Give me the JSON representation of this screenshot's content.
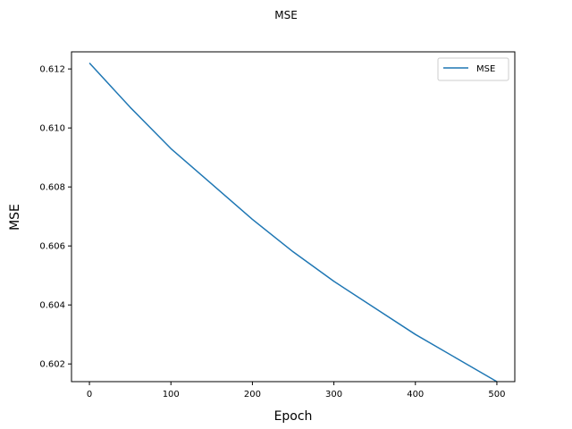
{
  "chart_data": {
    "type": "line",
    "title": "MSE",
    "xlabel": "Epoch",
    "ylabel": "MSE",
    "xlim": [
      -22,
      522
    ],
    "ylim": [
      0.6014,
      0.61258
    ],
    "xticks": [
      0,
      100,
      200,
      300,
      400,
      500
    ],
    "xtick_labels": [
      "0",
      "100",
      "200",
      "300",
      "400",
      "500"
    ],
    "yticks": [
      0.602,
      0.604,
      0.606,
      0.608,
      0.61,
      0.612
    ],
    "ytick_labels": [
      "0.602",
      "0.604",
      "0.606",
      "0.608",
      "0.610",
      "0.612"
    ],
    "grid": false,
    "legend_position": "top-right",
    "series": [
      {
        "name": "MSE",
        "color": "#1f77b4",
        "x": [
          0,
          50,
          100,
          150,
          200,
          250,
          300,
          350,
          400,
          450,
          500
        ],
        "y": [
          0.6122,
          0.6107,
          0.6093,
          0.6081,
          0.6069,
          0.6058,
          0.6048,
          0.6039,
          0.603,
          0.6022,
          0.6014
        ]
      }
    ]
  }
}
